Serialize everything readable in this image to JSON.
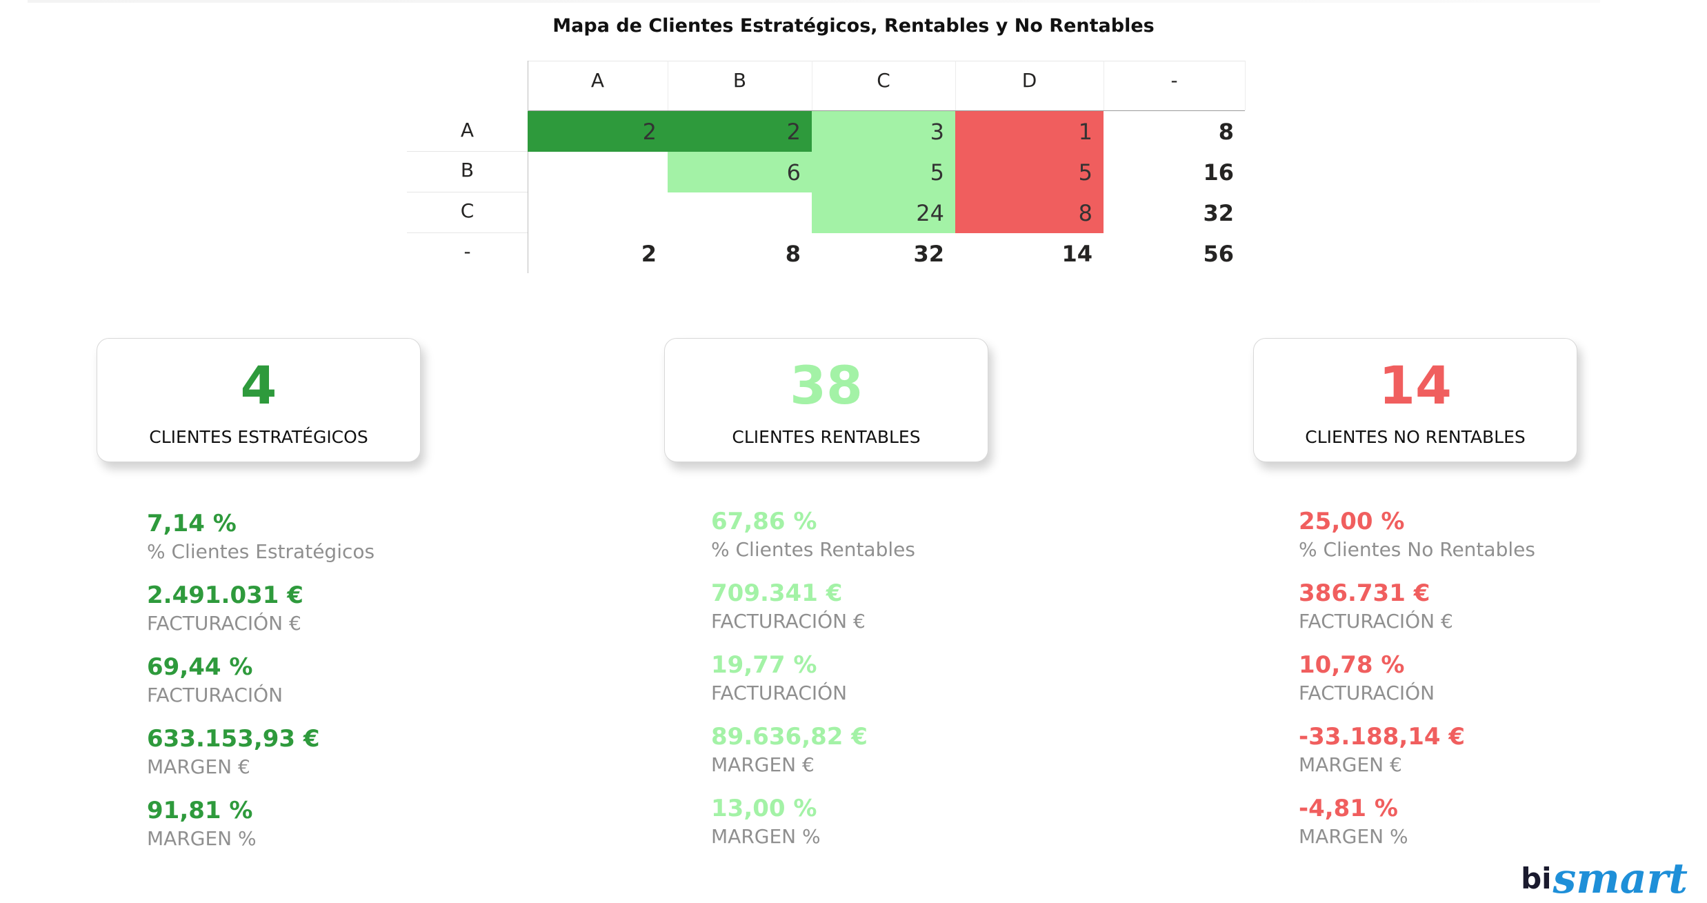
{
  "title": "Mapa de Clientes Estratégicos, Rentables y No Rentables",
  "matrix": {
    "col_headers": [
      "A",
      "B",
      "C",
      "D",
      "-"
    ],
    "row_headers": [
      "A",
      "B",
      "C",
      "-"
    ],
    "rows": [
      [
        "2",
        "2",
        "3",
        "1",
        "8"
      ],
      [
        "",
        "6",
        "5",
        "5",
        "16"
      ],
      [
        "",
        "",
        "24",
        "8",
        "32"
      ],
      [
        "2",
        "8",
        "32",
        "14",
        "56"
      ]
    ]
  },
  "colors": {
    "strategic": "#2e9a3c",
    "profitable": "#a3f2a6",
    "unprofitable": "#f05e5e"
  },
  "cards": [
    {
      "value": "4",
      "label": "CLIENTES ESTRATÉGICOS"
    },
    {
      "value": "38",
      "label": "CLIENTES RENTABLES"
    },
    {
      "value": "14",
      "label": "CLIENTES NO RENTABLES"
    }
  ],
  "stats": [
    [
      {
        "value": "7,14 %",
        "label": "% Clientes Estratégicos"
      },
      {
        "value": "2.491.031 €",
        "label": "FACTURACIÓN €"
      },
      {
        "value": "69,44 %",
        "label": "FACTURACIÓN"
      },
      {
        "value": "633.153,93 €",
        "label": "MARGEN €"
      },
      {
        "value": "91,81 %",
        "label": "MARGEN %"
      }
    ],
    [
      {
        "value": "67,86 %",
        "label": "% Clientes Rentables"
      },
      {
        "value": "709.341 €",
        "label": "FACTURACIÓN €"
      },
      {
        "value": "19,77 %",
        "label": "FACTURACIÓN"
      },
      {
        "value": "89.636,82 €",
        "label": "MARGEN €"
      },
      {
        "value": "13,00 %",
        "label": "MARGEN %"
      }
    ],
    [
      {
        "value": "25,00 %",
        "label": "% Clientes No Rentables"
      },
      {
        "value": "386.731 €",
        "label": "FACTURACIÓN €"
      },
      {
        "value": "10,78 %",
        "label": "FACTURACIÓN"
      },
      {
        "value": "-33.188,14 €",
        "label": "MARGEN €"
      },
      {
        "value": "-4,81 %",
        "label": "MARGEN %"
      }
    ]
  ],
  "logo": {
    "part1": "bi",
    "part2": "smart"
  }
}
